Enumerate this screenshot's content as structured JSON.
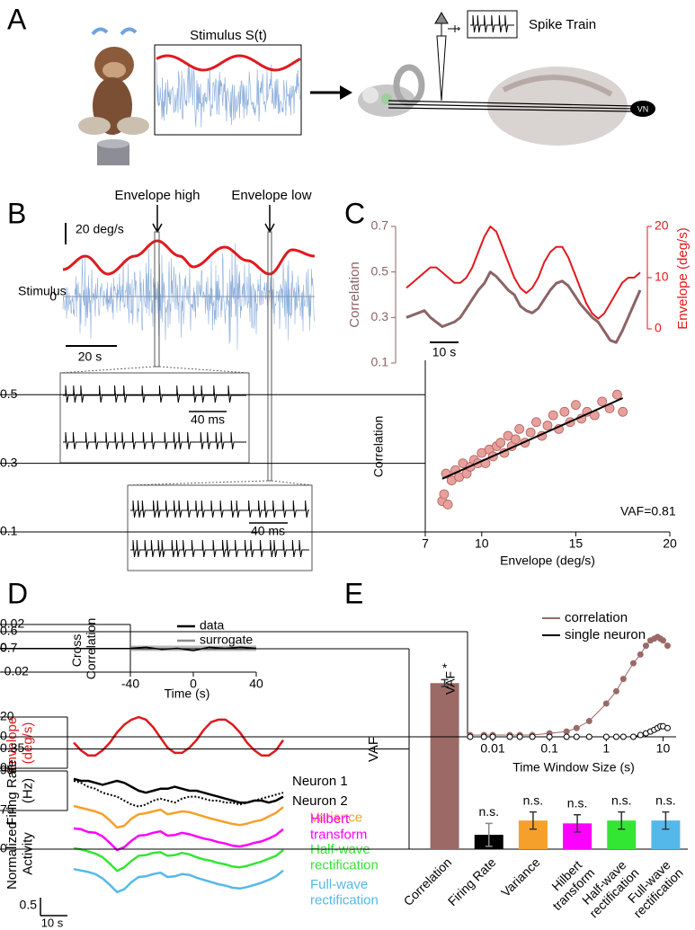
{
  "panel_a": {
    "label": "A",
    "stimulus_title": "Stimulus S(t)",
    "spike_train": "Spike Train",
    "vn": "VN"
  },
  "panel_b": {
    "label": "B",
    "envelope_high": "Envelope high",
    "envelope_low": "Envelope low",
    "scale_amplitude": "20 deg/s",
    "ylabel": "Stimulus",
    "zero": "0",
    "scale_time": "20 s",
    "zoom_high_scale": "40 ms",
    "zoom_low_scale": "40 ms"
  },
  "chart_data": [
    {
      "type": "line",
      "panel": "C",
      "ylabel": "Correlation",
      "y2label": "Envelope (deg/s)",
      "ylim": [
        0.1,
        0.7
      ],
      "yticks": [
        0.1,
        0.3,
        0.5,
        0.7
      ],
      "y2lim": [
        0,
        20
      ],
      "y2ticks": [
        0,
        10,
        20
      ],
      "scale_time": "10 s",
      "axis_color": "#8c6466",
      "axis2_color": "#e0191e",
      "series": [
        {
          "color": "#8c6466",
          "values": [
            0.3,
            0.31,
            0.32,
            0.33,
            0.3,
            0.28,
            0.26,
            0.27,
            0.28,
            0.3,
            0.34,
            0.38,
            0.42,
            0.45,
            0.5,
            0.48,
            0.45,
            0.42,
            0.4,
            0.35,
            0.33,
            0.32,
            0.34,
            0.38,
            0.42,
            0.45,
            0.46,
            0.44,
            0.4,
            0.36,
            0.33,
            0.3,
            0.28,
            0.24,
            0.2,
            0.19,
            0.24,
            0.3,
            0.36,
            0.42
          ]
        },
        {
          "color": "#e0191e",
          "axis": "y2",
          "values": [
            8,
            9,
            10,
            11,
            12,
            12,
            11,
            10,
            9,
            9,
            10,
            12,
            15,
            18,
            20,
            19,
            16,
            13,
            10,
            8,
            7,
            8,
            10,
            13,
            15,
            16,
            16,
            14,
            11,
            8,
            5,
            3,
            2,
            3,
            5,
            7,
            9,
            10,
            10,
            11
          ]
        }
      ]
    },
    {
      "type": "scatter",
      "xlabel": "Envelope (deg/s)",
      "ylabel": "Correlation",
      "xlim": [
        7,
        20
      ],
      "xticks": [
        7,
        10,
        15,
        20
      ],
      "ylim": [
        0.1,
        0.6
      ],
      "yticks": [
        0.1,
        0.3,
        0.5
      ],
      "color": "#e8a09c",
      "x": [
        7.9,
        8,
        8.1,
        8.2,
        8.4,
        8.6,
        8.8,
        9,
        9.2,
        9.4,
        9.6,
        9.8,
        10,
        10.2,
        10.4,
        10.6,
        10.8,
        11,
        11.2,
        11.4,
        11.6,
        11.8,
        12,
        12.3,
        12.6,
        12.9,
        13.2,
        13.5,
        13.8,
        14.1,
        14.4,
        14.7,
        15,
        15.3,
        15.6,
        16,
        16.4,
        16.8,
        17.2,
        17.5
      ],
      "values": [
        0.19,
        0.21,
        0.27,
        0.18,
        0.25,
        0.28,
        0.26,
        0.3,
        0.27,
        0.29,
        0.31,
        0.3,
        0.33,
        0.3,
        0.34,
        0.32,
        0.35,
        0.36,
        0.33,
        0.38,
        0.35,
        0.37,
        0.4,
        0.36,
        0.39,
        0.42,
        0.38,
        0.41,
        0.44,
        0.4,
        0.45,
        0.42,
        0.47,
        0.43,
        0.45,
        0.44,
        0.48,
        0.46,
        0.5,
        0.45
      ],
      "fit": {
        "x": [
          7.9,
          17.5
        ],
        "values": [
          0.255,
          0.49
        ]
      },
      "annotation": "VAF=0.81"
    },
    {
      "type": "line",
      "panel": "D",
      "ylabel": "Cross Correlation",
      "xlabel": "Time (s)",
      "xlim": [
        -40,
        40
      ],
      "xticks": [
        -40,
        0,
        40
      ],
      "ylim": [
        -0.02,
        0.02
      ],
      "yticks": [
        -0.02,
        0,
        0.02
      ],
      "x": [
        -40,
        -30,
        -20,
        -10,
        0,
        10,
        20,
        30,
        40
      ],
      "series": [
        {
          "name": "data",
          "color": "#000000",
          "values": [
            0,
            0.001,
            -0.001,
            0,
            -0.002,
            0.001,
            0,
            0.001,
            0
          ]
        },
        {
          "name": "surrogate",
          "color": "#8c8c8c",
          "values": [
            0,
            0,
            0,
            0,
            0,
            0,
            0,
            0,
            0
          ]
        }
      ]
    },
    {
      "type": "line",
      "ylabel": "Envelope (deg/s)",
      "ylim": [
        0,
        20
      ],
      "yticks": [
        0,
        20
      ],
      "label_color": "#e0191e",
      "series": [
        {
          "color": "#e0191e",
          "values": [
            10,
            7,
            5,
            5,
            7,
            10,
            14,
            17,
            19,
            20,
            19,
            16,
            12,
            8,
            6,
            6,
            8,
            11,
            15,
            18,
            19,
            19,
            17,
            14,
            10,
            7,
            5,
            5,
            7,
            11
          ]
        }
      ]
    },
    {
      "type": "line",
      "ylabel": "Firing Rate (Hz)",
      "ylim": [
        75,
        95
      ],
      "yticks": [
        75,
        95
      ],
      "series": [
        {
          "name": "Neuron 1",
          "color": "#000000",
          "values": [
            91,
            90,
            90,
            89,
            88,
            89,
            90,
            89,
            87,
            85,
            84,
            85,
            86,
            86,
            87,
            86,
            85,
            85,
            84,
            83,
            82,
            81,
            80,
            79,
            79,
            80,
            80,
            79,
            80,
            82
          ]
        },
        {
          "name": "Neuron 2",
          "color": "#000000",
          "dashed": true,
          "values": [
            90,
            89,
            87,
            86,
            84,
            83,
            82,
            80,
            78,
            77,
            78,
            80,
            81,
            80,
            79,
            81,
            82,
            82,
            81,
            80,
            80,
            79,
            79,
            78,
            79,
            80,
            81,
            82,
            83,
            84
          ]
        }
      ]
    },
    {
      "type": "line",
      "ylabel": "Normalized Activity",
      "scale_value": 0.5,
      "scale_time": "10 s",
      "series": [
        {
          "name": "Variance",
          "color": "#f5a02a",
          "values": [
            0.95,
            0.9,
            0.85,
            0.8,
            0.72,
            0.55,
            0.35,
            0.4,
            0.6,
            0.72,
            0.75,
            0.8,
            0.85,
            0.72,
            0.76,
            0.8,
            0.78,
            0.72,
            0.66,
            0.6,
            0.55,
            0.5,
            0.45,
            0.42,
            0.46,
            0.52,
            0.56,
            0.66,
            0.76,
            0.92
          ]
        },
        {
          "name": "Hilbert transform",
          "color": "#ff00ff",
          "values": [
            0.9,
            0.88,
            0.8,
            0.78,
            0.68,
            0.5,
            0.3,
            0.38,
            0.56,
            0.7,
            0.72,
            0.78,
            0.82,
            0.7,
            0.72,
            0.78,
            0.74,
            0.68,
            0.62,
            0.58,
            0.52,
            0.48,
            0.42,
            0.4,
            0.44,
            0.5,
            0.54,
            0.62,
            0.72,
            0.88
          ]
        },
        {
          "name": "Half-wave rectification",
          "color": "#33e633",
          "values": [
            0.95,
            0.92,
            0.86,
            0.8,
            0.7,
            0.52,
            0.32,
            0.42,
            0.6,
            0.74,
            0.76,
            0.82,
            0.84,
            0.74,
            0.76,
            0.82,
            0.78,
            0.7,
            0.64,
            0.6,
            0.54,
            0.5,
            0.44,
            0.42,
            0.46,
            0.52,
            0.58,
            0.66,
            0.74,
            0.9
          ]
        },
        {
          "name": "Full-wave rectification",
          "color": "#55b8ea",
          "values": [
            0.92,
            0.88,
            0.84,
            0.78,
            0.66,
            0.48,
            0.28,
            0.36,
            0.56,
            0.7,
            0.72,
            0.78,
            0.82,
            0.7,
            0.72,
            0.78,
            0.76,
            0.68,
            0.62,
            0.56,
            0.5,
            0.46,
            0.4,
            0.38,
            0.42,
            0.48,
            0.54,
            0.62,
            0.72,
            0.88
          ]
        }
      ]
    },
    {
      "type": "bar",
      "panel": "E",
      "ylabel": "VAF",
      "ylim": [
        0,
        0.7
      ],
      "yticks": [
        0,
        0.35,
        0.7
      ],
      "categories": [
        "Correlation",
        "Firing Rate",
        "Variance",
        "Hilbert transform",
        "Half-wave rectification",
        "Full-wave rectification"
      ],
      "values": [
        0.58,
        0.05,
        0.1,
        0.09,
        0.1,
        0.1
      ],
      "errors": [
        0.012,
        0.04,
        0.03,
        0.03,
        0.03,
        0.03
      ],
      "colors": [
        "#9b6a66",
        "#000000",
        "#f5a02a",
        "#ff00ff",
        "#33e633",
        "#55b8ea"
      ],
      "annotations": [
        "*",
        "n.s.",
        "n.s.",
        "n.s.",
        "n.s.",
        "n.s."
      ]
    },
    {
      "type": "line",
      "log_x": true,
      "xlabel": "Time Window Size (s)",
      "ylabel": "VAF",
      "xlim": [
        0.0036,
        17
      ],
      "xticks": [
        0.01,
        0.1,
        1,
        10
      ],
      "ylim": [
        0,
        0.6
      ],
      "yticks": [
        0,
        0.6
      ],
      "x": [
        0.004,
        0.007,
        0.01,
        0.02,
        0.03,
        0.05,
        0.1,
        0.2,
        0.3,
        0.5,
        1,
        1.5,
        2,
        3,
        4,
        5,
        6,
        7,
        8,
        9,
        10,
        12
      ],
      "series": [
        {
          "name": "correlation",
          "color": "#9b6a66",
          "marker": "filled",
          "values": [
            0.01,
            0.01,
            0.01,
            0.01,
            0.01,
            0.01,
            0.02,
            0.03,
            0.05,
            0.09,
            0.19,
            0.26,
            0.33,
            0.42,
            0.47,
            0.52,
            0.55,
            0.56,
            0.57,
            0.56,
            0.55,
            0.52
          ]
        },
        {
          "name": "single neuron",
          "color": "#000000",
          "marker": "open",
          "values": [
            0,
            0,
            0,
            0,
            0,
            0,
            0,
            0,
            0,
            0,
            0,
            0,
            0,
            0,
            0.01,
            0.02,
            0.03,
            0.04,
            0.05,
            0.06,
            0.06,
            0.05
          ]
        }
      ]
    }
  ]
}
